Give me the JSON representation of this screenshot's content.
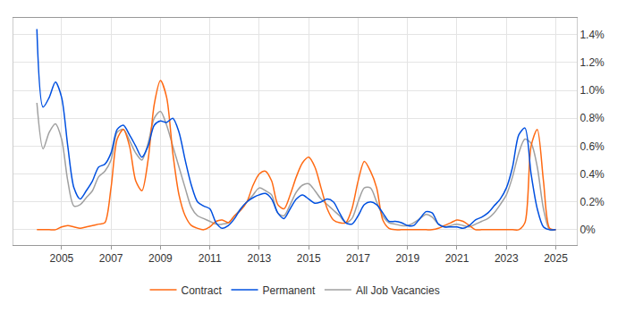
{
  "chart_data": {
    "type": "line",
    "x": [
      2004,
      2004.25,
      2004.5,
      2004.75,
      2005,
      2005.25,
      2005.5,
      2005.75,
      2006,
      2006.25,
      2006.5,
      2006.75,
      2007,
      2007.25,
      2007.5,
      2007.75,
      2008,
      2008.25,
      2008.5,
      2008.75,
      2009,
      2009.25,
      2009.5,
      2009.75,
      2010,
      2010.25,
      2010.5,
      2010.75,
      2011,
      2011.25,
      2011.5,
      2011.75,
      2012,
      2012.25,
      2012.5,
      2012.75,
      2013,
      2013.25,
      2013.5,
      2013.75,
      2014,
      2014.25,
      2014.5,
      2014.75,
      2015,
      2015.25,
      2015.5,
      2015.75,
      2016,
      2016.25,
      2016.5,
      2016.75,
      2017,
      2017.25,
      2017.5,
      2017.75,
      2018,
      2018.25,
      2018.5,
      2018.75,
      2019,
      2019.25,
      2019.5,
      2019.75,
      2020,
      2020.25,
      2020.5,
      2020.75,
      2021,
      2021.25,
      2021.5,
      2021.75,
      2022,
      2022.25,
      2022.5,
      2022.75,
      2023,
      2023.25,
      2023.5,
      2023.75,
      2024,
      2024.25,
      2024.5,
      2024.75,
      2025
    ],
    "series": [
      {
        "name": "Contract",
        "color": "#ff6a13",
        "values": [
          0,
          0,
          0,
          0,
          0.02,
          0.03,
          0.02,
          0.01,
          0.02,
          0.03,
          0.04,
          0.05,
          0.3,
          0.65,
          0.72,
          0.6,
          0.35,
          0.28,
          0.5,
          0.9,
          1.07,
          0.95,
          0.55,
          0.25,
          0.1,
          0.03,
          0.01,
          0,
          0.02,
          0.06,
          0.07,
          0.05,
          0.1,
          0.14,
          0.2,
          0.32,
          0.4,
          0.42,
          0.35,
          0.18,
          0.15,
          0.25,
          0.38,
          0.48,
          0.52,
          0.45,
          0.3,
          0.15,
          0.07,
          0.05,
          0.05,
          0.15,
          0.35,
          0.49,
          0.42,
          0.3,
          0.07,
          0.01,
          0,
          0,
          0,
          0,
          0,
          0,
          0,
          0.01,
          0.03,
          0.05,
          0.07,
          0.06,
          0.03,
          0,
          0,
          0,
          0,
          0,
          0,
          0,
          0,
          0.05,
          0.6,
          0.72,
          0.35,
          0.01,
          0
        ]
      },
      {
        "name": "Permanent",
        "color": "#0050e0",
        "values": [
          1.44,
          0.88,
          0.95,
          1.06,
          0.95,
          0.6,
          0.3,
          0.22,
          0.28,
          0.35,
          0.45,
          0.47,
          0.55,
          0.72,
          0.75,
          0.68,
          0.6,
          0.52,
          0.6,
          0.75,
          0.78,
          0.77,
          0.8,
          0.7,
          0.5,
          0.32,
          0.2,
          0.17,
          0.15,
          0.05,
          0.01,
          0.03,
          0.08,
          0.15,
          0.2,
          0.23,
          0.25,
          0.26,
          0.22,
          0.12,
          0.08,
          0.15,
          0.22,
          0.25,
          0.22,
          0.19,
          0.2,
          0.22,
          0.2,
          0.12,
          0.05,
          0.04,
          0.1,
          0.18,
          0.2,
          0.18,
          0.12,
          0.06,
          0.06,
          0.05,
          0.03,
          0.03,
          0.08,
          0.13,
          0.12,
          0.04,
          0.02,
          0.02,
          0.02,
          0.01,
          0.03,
          0.07,
          0.09,
          0.12,
          0.17,
          0.22,
          0.3,
          0.45,
          0.68,
          0.73,
          0.4,
          0.15,
          0.02,
          0,
          0
        ]
      },
      {
        "name": "All Job Vacancies",
        "color": "#a0a0a0",
        "values": [
          0.91,
          0.58,
          0.7,
          0.76,
          0.65,
          0.35,
          0.17,
          0.18,
          0.23,
          0.28,
          0.38,
          0.42,
          0.5,
          0.7,
          0.72,
          0.64,
          0.55,
          0.5,
          0.62,
          0.8,
          0.85,
          0.75,
          0.6,
          0.45,
          0.3,
          0.16,
          0.1,
          0.08,
          0.06,
          0.04,
          0.04,
          0.05,
          0.1,
          0.15,
          0.2,
          0.25,
          0.3,
          0.28,
          0.25,
          0.12,
          0.1,
          0.18,
          0.27,
          0.32,
          0.33,
          0.28,
          0.22,
          0.18,
          0.14,
          0.1,
          0.05,
          0.08,
          0.2,
          0.3,
          0.3,
          0.2,
          0.1,
          0.05,
          0.04,
          0.03,
          0.03,
          0.05,
          0.08,
          0.11,
          0.09,
          0.04,
          0.02,
          0.03,
          0.04,
          0.03,
          0.02,
          0.04,
          0.06,
          0.08,
          0.12,
          0.18,
          0.25,
          0.38,
          0.55,
          0.65,
          0.62,
          0.45,
          0.15,
          0,
          0
        ]
      }
    ],
    "xlim": [
      2003.05,
      2025.85
    ],
    "xticks": [
      2005,
      2007,
      2009,
      2011,
      2013,
      2015,
      2017,
      2019,
      2021,
      2023,
      2025
    ],
    "ylim": [
      -0.11,
      1.52
    ],
    "yticks": [
      {
        "value": 0,
        "label": "0%"
      },
      {
        "value": 0.2,
        "label": "0.2%"
      },
      {
        "value": 0.4,
        "label": "0.4%"
      },
      {
        "value": 0.6,
        "label": "0.6%"
      },
      {
        "value": 0.8,
        "label": "0.8%"
      },
      {
        "value": 1.0,
        "label": "1.0%"
      },
      {
        "value": 1.2,
        "label": "1.2%"
      },
      {
        "value": 1.4,
        "label": "1.4%"
      }
    ],
    "grid": true,
    "legend": "bottom"
  }
}
